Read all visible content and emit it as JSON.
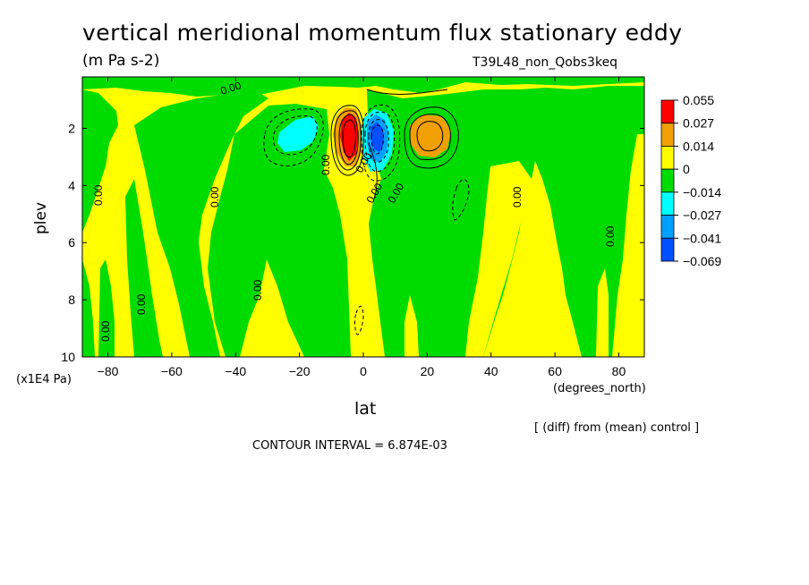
{
  "title": "vertical meridional momentum flux stationary eddy",
  "units": "(m Pa s-2)",
  "run_label": "T39L48_non_Qobs3keq",
  "note": "[ (diff) from (mean) control ]",
  "contour_interval": "CONTOUR INTERVAL = 6.874E-03",
  "colors": {
    "red": "#ff0000",
    "orange": "#f0a000",
    "yellow": "#ffff00",
    "green": "#00dc00",
    "cyan": "#00ffff",
    "mid_blue": "#00a0ff",
    "blue": "#0050ff"
  },
  "chart_data": {
    "type": "contour",
    "title": "vertical meridional momentum flux stationary eddy",
    "subtitle": "(m Pa s-2)",
    "xlabel": "lat",
    "x_units": "(degrees_north)",
    "ylabel": "plev",
    "y_units": "(x1E4 Pa)",
    "xlim": [
      -88,
      88
    ],
    "ylim": [
      10,
      0.2
    ],
    "x_ticks": [
      "-80",
      "-60",
      "-40",
      "-20",
      "0",
      "20",
      "40",
      "60",
      "80"
    ],
    "y_ticks": [
      "2",
      "4",
      "6",
      "8",
      "10"
    ],
    "legend": {
      "position": "right",
      "labels": [
        "0.055",
        "0.027",
        "0.014",
        "0",
        "-0.014",
        "-0.027",
        "-0.041",
        "-0.069"
      ],
      "colors": [
        "#ff0000",
        "#f0a000",
        "#ffff00",
        "#00dc00",
        "#00ffff",
        "#00a0ff",
        "#0050ff"
      ]
    },
    "contour_labels": [
      "0.00",
      "0.00",
      "0.00",
      "0.00",
      "0.00",
      "0.00",
      "0.00",
      "0.00",
      "0.00",
      "0.00",
      "0.00",
      "0.00"
    ],
    "features": [
      {
        "name": "positive maximum",
        "lat": -5,
        "plev": 2.2,
        "value_range": "0.027 to 0.055"
      },
      {
        "name": "negative minimum",
        "lat": 4,
        "plev": 2.2,
        "value_range": "-0.069 to -0.041"
      },
      {
        "name": "positive lobe",
        "lat": 22,
        "plev": 2.3,
        "value_range": "0.014 to 0.027"
      },
      {
        "name": "negative lobe",
        "lat": -17,
        "plev": 2.2,
        "value_range": "-0.027 to -0.014"
      }
    ]
  }
}
